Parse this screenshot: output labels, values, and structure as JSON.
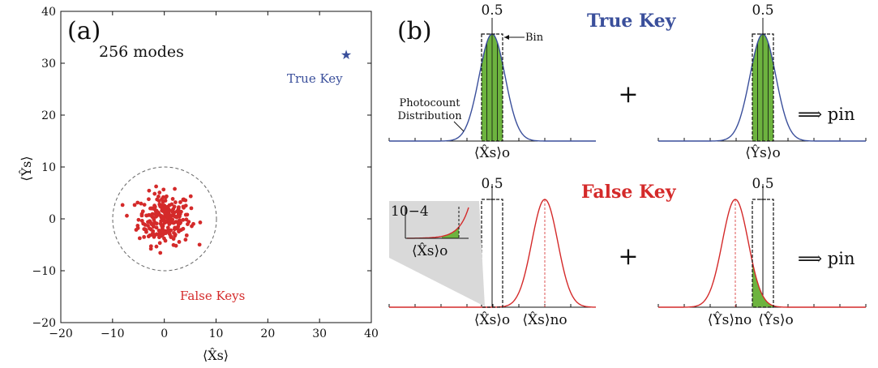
{
  "colors": {
    "true_key": "#3a4f9b",
    "false_key": "#d42a2a",
    "fill_green": "#6db33f",
    "axis": "#111111",
    "shade": "#d9d9d9"
  },
  "panel_a": {
    "panel_label": "(a)",
    "annotation": "256 modes",
    "true_key_label": "True Key",
    "false_keys_label": "False Keys",
    "xlabel": "⟨X̂s⟩",
    "ylabel": "⟨Ŷs⟩"
  },
  "panel_b": {
    "panel_label": "(b)",
    "true_title": "True Key",
    "false_title": "False Key",
    "bin_label": "Bin",
    "photocount_label_1": "Photocount",
    "photocount_label_2": "Distribution",
    "peak_label": "0.5",
    "plus": "+",
    "result_label": "⟹ pin",
    "inset_scale": "10−4",
    "inset_xlabel": "⟨X̂s⟩o",
    "xo_label": "⟨X̂s⟩o",
    "yo_label": "⟨Ŷs⟩o",
    "xno_label": "⟨X̂s⟩no",
    "yno_label": "⟨Ŷs⟩no"
  },
  "chart_data": [
    {
      "type": "scatter",
      "title": "",
      "xlabel": "⟨X̂s⟩",
      "ylabel": "⟨Ŷs⟩",
      "xlim": [
        -20,
        40
      ],
      "ylim": [
        -20,
        40
      ],
      "xticks": [
        -20,
        -10,
        0,
        10,
        20,
        30,
        40
      ],
      "yticks": [
        -20,
        -10,
        0,
        10,
        20,
        30,
        40
      ],
      "grid": false,
      "series": [
        {
          "name": "True Key",
          "marker": "star",
          "color": "#3a4f9b",
          "points": [
            [
              35,
              32
            ]
          ]
        },
        {
          "name": "False Keys",
          "marker": "dot",
          "color": "#d42a2a",
          "count": 256,
          "center": [
            0,
            0
          ],
          "spread_sd": 2.5,
          "boundary_circle_radius": 10
        }
      ]
    },
    {
      "type": "line",
      "title": "True Key",
      "subplots": [
        {
          "variable": "⟨X̂s⟩o",
          "peak": 0.5,
          "mean_offset": 0,
          "bin": [
            -0.5,
            0.5
          ],
          "shaded": "bin"
        },
        {
          "variable": "⟨Ŷs⟩o",
          "peak": 0.5,
          "mean_offset": 0,
          "bin": [
            -0.5,
            0.5
          ],
          "shaded": "bin"
        }
      ]
    },
    {
      "type": "line",
      "title": "False Key",
      "subplots": [
        {
          "variable": "⟨X̂s⟩o",
          "peak": 0.5,
          "mean_offset": 2.5,
          "bin": [
            -0.5,
            0.5
          ],
          "shaded": "tail",
          "inset_scale": "10−4"
        },
        {
          "variable": "⟨Ŷs⟩o",
          "peak": 0.5,
          "mean_offset": -1.0,
          "bin": [
            -0.5,
            0.5
          ],
          "shaded": "tail"
        }
      ]
    }
  ]
}
